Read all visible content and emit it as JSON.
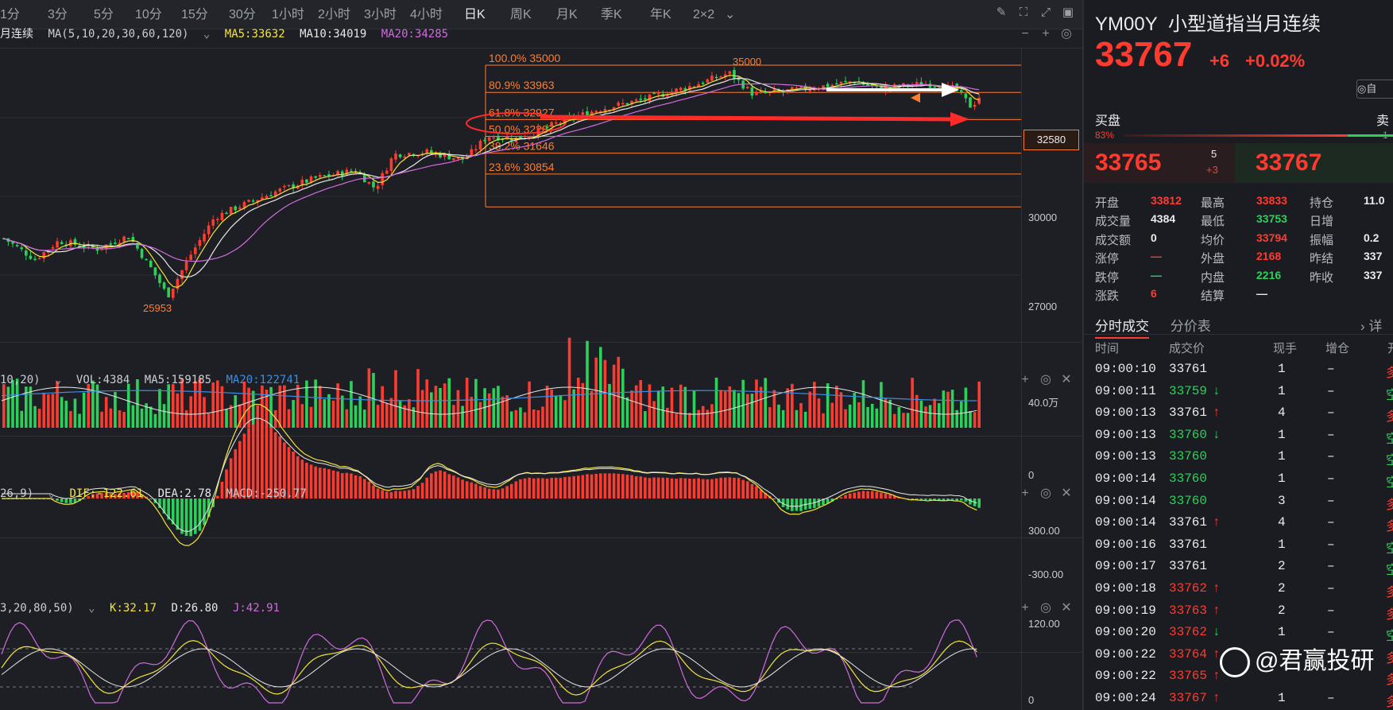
{
  "toolbar": {
    "periods": [
      "1分",
      "3分",
      "5分",
      "10分",
      "15分",
      "30分",
      "1小时",
      "2小时",
      "3小时",
      "4小时",
      "日K",
      "周K",
      "月K",
      "季K",
      "年K",
      "2×2"
    ],
    "active_period": "日K"
  },
  "main_legend": {
    "name": "月连续",
    "ma_label": "MA(5,10,20,30,60,120)",
    "ma5": "MA5:33632",
    "ma10": "MA10:34019",
    "ma20": "MA20:34285"
  },
  "price_axis": [
    "30000",
    "27000"
  ],
  "current_price_tag": "32580",
  "fib_levels": [
    {
      "label": "100.0%  35000",
      "price": 35000
    },
    {
      "label": "80.9%  33963",
      "price": 33963
    },
    {
      "label": "61.8%  32927",
      "price": 32927
    },
    {
      "label": "50.0%  32287",
      "price": 32287
    },
    {
      "label": "38.2%  31646",
      "price": 31646
    },
    {
      "label": "23.6%  30854",
      "price": 30854
    }
  ],
  "chart_annotations": {
    "high": "35000",
    "low": "25953"
  },
  "vol_legend": {
    "params": "10,20)",
    "vol": "VOL:4384",
    "ma5": "MA5:159185",
    "ma20": "MA20:122741"
  },
  "vol_axis": [
    "40.0万",
    "0"
  ],
  "macd_legend": {
    "params": "26,9)",
    "dif": "DIF:-122.61",
    "dea": "DEA:2.78",
    "macd": "MACD:-250.77"
  },
  "macd_axis": [
    "300.00",
    "-300.00"
  ],
  "kdj_legend": {
    "params": "3,20,80,50)",
    "k": "K:32.17",
    "d": "D:26.80",
    "j": "J:42.91"
  },
  "kdj_axis": [
    "120.00",
    "0"
  ],
  "quote": {
    "symbol": "YM00Y",
    "name": "小型道指当月连续",
    "price": "33767",
    "change": "+6",
    "change_pct": "+0.02%",
    "auto_label": "自",
    "buy_label": "买盘",
    "sell_label": "卖",
    "buy_ratio": "83%",
    "sell_ratio": "1",
    "bid_price": "33765",
    "ask_price": "33767",
    "bid_size": "5",
    "bid_delta": "+3"
  },
  "stats": [
    [
      {
        "l": "开盘",
        "v": "33812",
        "c": "red"
      },
      {
        "l": "最高",
        "v": "33833",
        "c": "red"
      },
      {
        "l": "持仓",
        "v": "11.0",
        "c": "white"
      }
    ],
    [
      {
        "l": "成交量",
        "v": "4384",
        "c": "white"
      },
      {
        "l": "最低",
        "v": "33753",
        "c": "green"
      },
      {
        "l": "日增",
        "v": "",
        "c": "white"
      }
    ],
    [
      {
        "l": "成交额",
        "v": "0",
        "c": "white"
      },
      {
        "l": "均价",
        "v": "33794",
        "c": "red"
      },
      {
        "l": "振幅",
        "v": "0.2",
        "c": "white"
      }
    ],
    [
      {
        "l": "涨停",
        "v": "—",
        "c": "red"
      },
      {
        "l": "外盘",
        "v": "2168",
        "c": "red"
      },
      {
        "l": "昨结",
        "v": "337",
        "c": "white"
      }
    ],
    [
      {
        "l": "跌停",
        "v": "—",
        "c": "green"
      },
      {
        "l": "内盘",
        "v": "2216",
        "c": "green"
      },
      {
        "l": "昨收",
        "v": "337",
        "c": "white"
      }
    ],
    [
      {
        "l": "涨跌",
        "v": "6",
        "c": "red"
      },
      {
        "l": "结算",
        "v": "—",
        "c": "white"
      },
      {
        "l": "",
        "v": "",
        "c": "white"
      }
    ]
  ],
  "tabs": [
    "分时成交",
    "分价表",
    "详"
  ],
  "trade_headers": [
    "时间",
    "成交价",
    "现手",
    "增仓",
    "开"
  ],
  "trades": [
    {
      "t": "09:00:10",
      "p": "33761",
      "arrow": "",
      "pc": "white",
      "q": "1",
      "oi": "–",
      "d": "多",
      "dc": "red"
    },
    {
      "t": "09:00:11",
      "p": "33759",
      "arrow": "↓",
      "pc": "green",
      "q": "1",
      "oi": "–",
      "d": "空",
      "dc": "green"
    },
    {
      "t": "09:00:13",
      "p": "33761",
      "arrow": "↑",
      "pc": "white",
      "q": "4",
      "oi": "–",
      "d": "多",
      "dc": "red"
    },
    {
      "t": "09:00:13",
      "p": "33760",
      "arrow": "↓",
      "pc": "green",
      "q": "1",
      "oi": "–",
      "d": "空",
      "dc": "green"
    },
    {
      "t": "09:00:13",
      "p": "33760",
      "arrow": "",
      "pc": "green",
      "q": "1",
      "oi": "–",
      "d": "空",
      "dc": "green"
    },
    {
      "t": "09:00:14",
      "p": "33760",
      "arrow": "",
      "pc": "green",
      "q": "1",
      "oi": "–",
      "d": "空",
      "dc": "green"
    },
    {
      "t": "09:00:14",
      "p": "33760",
      "arrow": "",
      "pc": "green",
      "q": "3",
      "oi": "–",
      "d": "多",
      "dc": "red"
    },
    {
      "t": "09:00:14",
      "p": "33761",
      "arrow": "↑",
      "pc": "white",
      "q": "4",
      "oi": "–",
      "d": "多",
      "dc": "red"
    },
    {
      "t": "09:00:16",
      "p": "33761",
      "arrow": "",
      "pc": "white",
      "q": "1",
      "oi": "–",
      "d": "空",
      "dc": "green"
    },
    {
      "t": "09:00:17",
      "p": "33761",
      "arrow": "",
      "pc": "white",
      "q": "2",
      "oi": "–",
      "d": "空",
      "dc": "green"
    },
    {
      "t": "09:00:18",
      "p": "33762",
      "arrow": "↑",
      "pc": "red",
      "q": "2",
      "oi": "–",
      "d": "多",
      "dc": "red"
    },
    {
      "t": "09:00:19",
      "p": "33763",
      "arrow": "↑",
      "pc": "red",
      "q": "2",
      "oi": "–",
      "d": "多",
      "dc": "red"
    },
    {
      "t": "09:00:20",
      "p": "33762",
      "arrow": "↓",
      "pc": "red",
      "q": "1",
      "oi": "–",
      "d": "空",
      "dc": "green"
    },
    {
      "t": "09:00:22",
      "p": "33764",
      "arrow": "↑",
      "pc": "red",
      "q": "",
      "oi": "",
      "d": "多",
      "dc": "red"
    },
    {
      "t": "09:00:22",
      "p": "33765",
      "arrow": "↑",
      "pc": "red",
      "q": "",
      "oi": "",
      "d": "多",
      "dc": "red"
    },
    {
      "t": "09:00:24",
      "p": "33767",
      "arrow": "↑",
      "pc": "red",
      "q": "1",
      "oi": "–",
      "d": "多",
      "dc": "red"
    }
  ],
  "watermark": "@君赢投研",
  "colors": {
    "up": "#ff3b30",
    "down": "#2bd15a",
    "fib": "#ff7d2e",
    "ma5": "#f2e53c",
    "ma10": "#e8e8e8",
    "ma20": "#d06be0",
    "vol_ma20": "#3a8ee6"
  }
}
